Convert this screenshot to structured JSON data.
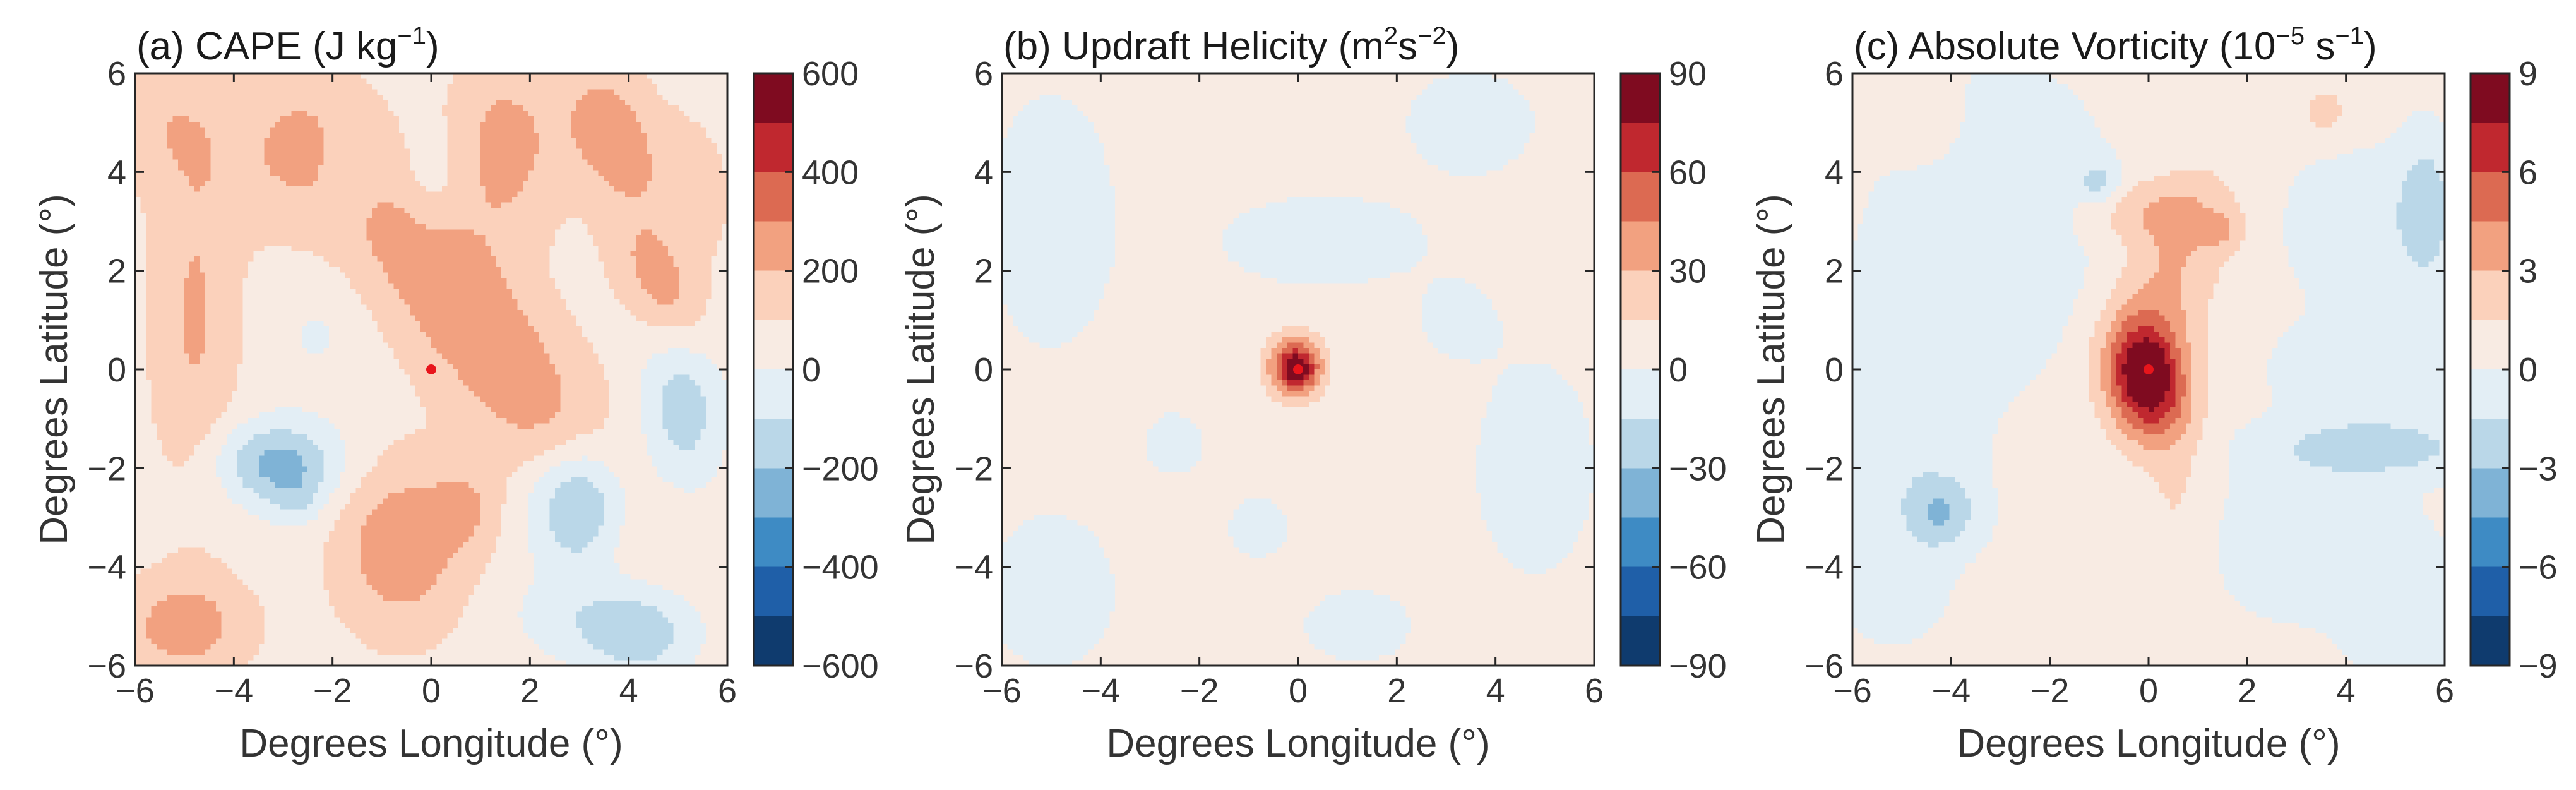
{
  "figure": {
    "background": "#ffffff"
  },
  "chart_data": [
    {
      "type": "heatmap",
      "id": "a",
      "title": "(a) CAPE (J kg",
      "title_sup": "−1",
      "title_tail": ")",
      "xlabel": "Degrees Longitude (°)",
      "ylabel": "Degrees Latitude (°)",
      "xlim": [
        -6,
        6
      ],
      "ylim": [
        -6,
        6
      ],
      "x_ticks": [
        "−6",
        "−4",
        "−2",
        "0",
        "2",
        "4",
        "6"
      ],
      "y_ticks": [
        "−6",
        "−4",
        "−2",
        "0",
        "2",
        "4",
        "6"
      ],
      "colorbar": {
        "range": [
          -600,
          600
        ],
        "ticks": [
          "600",
          "400",
          "200",
          "0",
          "−200",
          "−400",
          "−600"
        ]
      },
      "center_marker": {
        "x": 0,
        "y": 0,
        "color": "#e8151b"
      },
      "grid": false,
      "field": {
        "base": 60,
        "blobs": [
          {
            "x": 0.8,
            "y": 1.0,
            "sx": 0.9,
            "sy": 3.6,
            "rot": 38,
            "amp": 230
          },
          {
            "x": 1.5,
            "y": 4.5,
            "sx": 0.8,
            "sy": 1.3,
            "rot": 0,
            "amp": 180
          },
          {
            "x": 3.6,
            "y": 4.8,
            "sx": 0.6,
            "sy": 1.0,
            "rot": 15,
            "amp": 200
          },
          {
            "x": 4.7,
            "y": 1.6,
            "sx": 0.5,
            "sy": 1.0,
            "rot": 30,
            "amp": 170
          },
          {
            "x": -0.6,
            "y": -3.6,
            "sx": 0.9,
            "sy": 1.2,
            "rot": 0,
            "amp": 220
          },
          {
            "x": 0.7,
            "y": -2.8,
            "sx": 0.5,
            "sy": 0.6,
            "rot": 0,
            "amp": 120
          },
          {
            "x": -4.8,
            "y": 1.0,
            "sx": 0.6,
            "sy": 2.5,
            "rot": 0,
            "amp": 150
          },
          {
            "x": -5.0,
            "y": -5.2,
            "sx": 0.9,
            "sy": 0.7,
            "rot": 0,
            "amp": 200
          },
          {
            "x": -3.0,
            "y": 4.2,
            "sx": 1.2,
            "sy": 1.1,
            "rot": 0,
            "amp": 110
          },
          {
            "x": -5.5,
            "y": 5.0,
            "sx": 0.8,
            "sy": 0.9,
            "rot": 0,
            "amp": 100
          },
          {
            "x": 5.0,
            "y": 3.5,
            "sx": 0.8,
            "sy": 1.2,
            "rot": 0,
            "amp": 90
          },
          {
            "x": -3.1,
            "y": -1.9,
            "sx": 0.9,
            "sy": 0.6,
            "rot": 0,
            "amp": -300
          },
          {
            "x": -2.7,
            "y": -2.7,
            "sx": 0.4,
            "sy": 0.4,
            "rot": 0,
            "amp": -100
          },
          {
            "x": 3.0,
            "y": -2.7,
            "sx": 0.7,
            "sy": 0.9,
            "rot": 0,
            "amp": -330
          },
          {
            "x": 5.1,
            "y": -0.8,
            "sx": 0.6,
            "sy": 1.2,
            "rot": 0,
            "amp": -220
          },
          {
            "x": 4.2,
            "y": -5.3,
            "sx": 0.9,
            "sy": 0.7,
            "rot": 0,
            "amp": -240
          },
          {
            "x": -1.6,
            "y": 4.0,
            "sx": 0.5,
            "sy": 0.7,
            "rot": 0,
            "amp": -110
          },
          {
            "x": 0.0,
            "y": 3.8,
            "sx": 0.5,
            "sy": 0.8,
            "rot": 0,
            "amp": -90
          },
          {
            "x": 2.5,
            "y": -5.0,
            "sx": 0.8,
            "sy": 0.6,
            "rot": 0,
            "amp": -80
          },
          {
            "x": -2.3,
            "y": 0.7,
            "sx": 0.6,
            "sy": 0.8,
            "rot": 0,
            "amp": -70
          }
        ]
      }
    },
    {
      "type": "heatmap",
      "id": "b",
      "title": "(b) Updraft Helicity (m",
      "title_sup": "2",
      "title_tail": "s",
      "title_sup2": "−2",
      "title_tail2": ")",
      "xlabel": "Degrees Longitude (°)",
      "ylabel": "Degrees Latitude (°)",
      "xlim": [
        -6,
        6
      ],
      "ylim": [
        -6,
        6
      ],
      "x_ticks": [
        "−6",
        "−4",
        "−2",
        "0",
        "2",
        "4",
        "6"
      ],
      "y_ticks": [
        "−6",
        "−4",
        "−2",
        "0",
        "2",
        "4",
        "6"
      ],
      "colorbar": {
        "range": [
          -90,
          90
        ],
        "ticks": [
          "90",
          "60",
          "30",
          "0",
          "−30",
          "−60",
          "−90"
        ]
      },
      "center_marker": {
        "x": 0,
        "y": 0,
        "color": "#e8151b"
      },
      "grid": false,
      "field": {
        "base": 4,
        "blobs": [
          {
            "x": -0.05,
            "y": 0.05,
            "sx": 0.38,
            "sy": 0.42,
            "rot": 0,
            "amp": 78
          },
          {
            "x": 0.0,
            "y": 0.0,
            "sx": 0.15,
            "sy": 0.15,
            "rot": 0,
            "amp": 20
          },
          {
            "x": -5.0,
            "y": 3.0,
            "sx": 1.0,
            "sy": 2.0,
            "rot": 0,
            "amp": -9
          },
          {
            "x": 0.5,
            "y": 2.6,
            "sx": 1.6,
            "sy": 0.7,
            "rot": 0,
            "amp": -9
          },
          {
            "x": 3.5,
            "y": 5.0,
            "sx": 1.0,
            "sy": 0.8,
            "rot": 0,
            "amp": -9
          },
          {
            "x": -2.5,
            "y": -1.5,
            "sx": 0.5,
            "sy": 0.5,
            "rot": 0,
            "amp": -8
          },
          {
            "x": 4.8,
            "y": -2.0,
            "sx": 1.0,
            "sy": 1.8,
            "rot": 0,
            "amp": -8
          },
          {
            "x": -5.0,
            "y": -4.5,
            "sx": 1.0,
            "sy": 1.2,
            "rot": 0,
            "amp": -9
          },
          {
            "x": 1.2,
            "y": -5.2,
            "sx": 0.9,
            "sy": 0.6,
            "rot": 0,
            "amp": -8
          },
          {
            "x": -0.8,
            "y": -3.2,
            "sx": 0.5,
            "sy": 0.5,
            "rot": 0,
            "amp": -8
          },
          {
            "x": 3.2,
            "y": 1.0,
            "sx": 0.6,
            "sy": 0.6,
            "rot": 0,
            "amp": -7
          }
        ]
      }
    },
    {
      "type": "heatmap",
      "id": "c",
      "title": "(c) Absolute Vorticity (10",
      "title_sup": "−5",
      "title_tail": " s",
      "title_sup2": "−1",
      "title_tail2": ")",
      "xlabel": "Degrees Longitude (°)",
      "ylabel": "Degrees Latitude (°)",
      "xlim": [
        -6,
        6
      ],
      "ylim": [
        -6,
        6
      ],
      "x_ticks": [
        "−6",
        "−4",
        "−2",
        "0",
        "2",
        "4",
        "6"
      ],
      "y_ticks": [
        "−6",
        "−4",
        "−2",
        "0",
        "2",
        "4",
        "6"
      ],
      "colorbar": {
        "range": [
          -9,
          9
        ],
        "ticks": [
          "9",
          "6",
          "3",
          "0",
          "−3",
          "−6",
          "−9"
        ]
      },
      "center_marker": {
        "x": 0,
        "y": 0,
        "color": "#e8151b"
      },
      "grid": false,
      "field": {
        "base": 0.4,
        "blobs": [
          {
            "x": -0.05,
            "y": -0.2,
            "sx": 0.55,
            "sy": 0.85,
            "rot": 10,
            "amp": 8.2
          },
          {
            "x": 0.0,
            "y": 0.0,
            "sx": 0.2,
            "sy": 0.25,
            "rot": 0,
            "amp": 2.0
          },
          {
            "x": 0.4,
            "y": 1.8,
            "sx": 0.7,
            "sy": 1.6,
            "rot": -20,
            "amp": 2.6
          },
          {
            "x": 0.0,
            "y": 3.2,
            "sx": 1.0,
            "sy": 0.5,
            "rot": 0,
            "amp": 2.0
          },
          {
            "x": 1.5,
            "y": 2.8,
            "sx": 0.3,
            "sy": 0.3,
            "rot": 0,
            "amp": 1.5
          },
          {
            "x": 0.6,
            "y": -3.0,
            "sx": 0.5,
            "sy": 2.0,
            "rot": 0,
            "amp": 1.3
          },
          {
            "x": 3.6,
            "y": 5.2,
            "sx": 0.4,
            "sy": 0.5,
            "rot": 0,
            "amp": 1.6
          },
          {
            "x": -4.5,
            "y": 5.0,
            "sx": 0.5,
            "sy": 0.6,
            "rot": 0,
            "amp": 1.2
          },
          {
            "x": -3.0,
            "y": 3.0,
            "sx": 1.5,
            "sy": 2.0,
            "rot": 0,
            "amp": -1.5
          },
          {
            "x": -1.0,
            "y": 3.8,
            "sx": 0.3,
            "sy": 0.3,
            "rot": 0,
            "amp": -2.5
          },
          {
            "x": 4.0,
            "y": 3.0,
            "sx": 0.8,
            "sy": 1.0,
            "rot": 0,
            "amp": -1.6
          },
          {
            "x": 5.6,
            "y": 3.2,
            "sx": 0.4,
            "sy": 1.0,
            "rot": 0,
            "amp": -3.2
          },
          {
            "x": 4.5,
            "y": 0.0,
            "sx": 1.2,
            "sy": 0.7,
            "rot": 0,
            "amp": -1.8
          },
          {
            "x": 4.5,
            "y": -1.6,
            "sx": 1.5,
            "sy": 0.4,
            "rot": 0,
            "amp": -2.8
          },
          {
            "x": -5.0,
            "y": -1.0,
            "sx": 1.0,
            "sy": 2.0,
            "rot": 0,
            "amp": -1.5
          },
          {
            "x": -4.2,
            "y": -2.9,
            "sx": 0.5,
            "sy": 0.5,
            "rot": 0,
            "amp": -3.0
          },
          {
            "x": -5.2,
            "y": -4.5,
            "sx": 0.6,
            "sy": 0.6,
            "rot": 0,
            "amp": -1.5
          },
          {
            "x": 3.2,
            "y": -3.5,
            "sx": 1.5,
            "sy": 1.0,
            "rot": 0,
            "amp": -1.5
          },
          {
            "x": 5.2,
            "y": -5.0,
            "sx": 0.8,
            "sy": 0.8,
            "rot": 0,
            "amp": -1.5
          }
        ]
      }
    }
  ],
  "colormap": {
    "levels": [
      "#0f3b6e",
      "#1f5fa8",
      "#3e8bc4",
      "#7fb3d6",
      "#bad7e8",
      "#e3eef5",
      "#f8ebe3",
      "#fbd1bb",
      "#f2a180",
      "#dc6a52",
      "#c0282f",
      "#7f0b20"
    ]
  }
}
